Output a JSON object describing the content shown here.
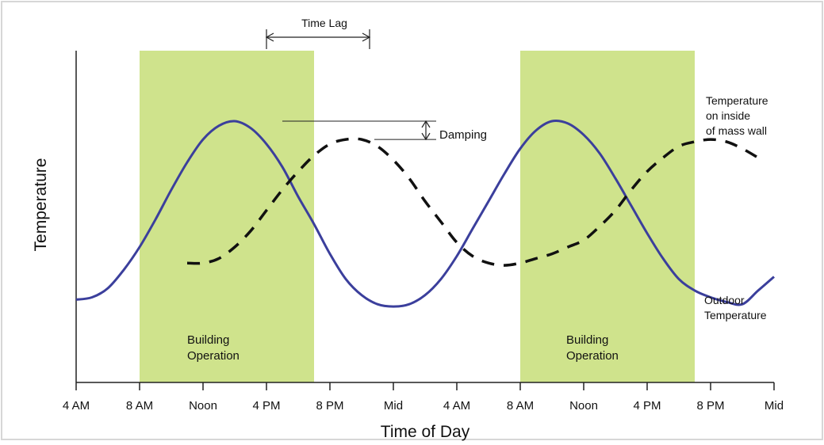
{
  "chart_data": {
    "type": "line",
    "title": "",
    "xlabel": "Time of Day",
    "ylabel": "Temperature",
    "x_ticks": [
      "4 AM",
      "8 AM",
      "Noon",
      "4 PM",
      "8 PM",
      "Mid",
      "4 AM",
      "8 AM",
      "Noon",
      "4 PM",
      "8 PM",
      "Mid"
    ],
    "x_unit": "hours after first 4 AM",
    "xlim": [
      0,
      44
    ],
    "ylim": [
      0,
      100
    ],
    "grid": false,
    "shaded_regions": [
      {
        "label": "Building Operation",
        "start": 4,
        "end": 15,
        "color": "#cfe38c"
      },
      {
        "label": "Building Operation",
        "start": 28,
        "end": 39,
        "color": "#cfe38c"
      }
    ],
    "series": [
      {
        "name": "Outdoor Temperature",
        "style": "solid",
        "color": "#3b3f9c",
        "x": [
          0,
          1,
          2,
          3,
          4,
          5,
          6,
          7,
          8,
          9,
          10,
          11,
          12,
          13,
          14,
          15,
          16,
          17,
          18,
          19,
          20,
          21,
          22,
          23,
          24,
          25,
          26,
          27,
          28,
          29,
          30,
          31,
          32,
          33,
          34,
          35,
          36,
          37,
          38,
          39,
          40,
          41,
          42,
          43,
          44
        ],
        "y": [
          4,
          5,
          9,
          17,
          27,
          39,
          52,
          64,
          74,
          80,
          82,
          79,
          72,
          62,
          49,
          37,
          24,
          13,
          6,
          2,
          1,
          2,
          6,
          13,
          23,
          35,
          47,
          59,
          70,
          78,
          82,
          81,
          76,
          68,
          57,
          45,
          33,
          22,
          13,
          8,
          5,
          3,
          2,
          8,
          14
        ]
      },
      {
        "name": "Temperature on inside of mass wall",
        "style": "dashed",
        "color": "#111111",
        "x": [
          7,
          8,
          9,
          10,
          11,
          12,
          13,
          14,
          15,
          16,
          17,
          18,
          19,
          20,
          21,
          22,
          23,
          24,
          25,
          26,
          27,
          28,
          29,
          30,
          31,
          32,
          33,
          34,
          35,
          36,
          37,
          38,
          39,
          40,
          41,
          42,
          43
        ],
        "y": [
          20,
          20,
          22,
          27,
          34,
          43,
          52,
          60,
          67,
          72,
          74,
          74,
          71,
          65,
          57,
          47,
          38,
          29,
          23,
          20,
          19,
          20,
          22,
          24,
          27,
          30,
          36,
          43,
          52,
          60,
          66,
          71,
          73,
          74,
          73,
          70,
          66
        ]
      }
    ],
    "annotations": [
      {
        "text": "Time Lag",
        "kind": "horizontal-arrow",
        "x_from": 12,
        "x_to": 18.5,
        "note": "shift between outdoor peak and inside-wall peak"
      },
      {
        "text": "Damping",
        "kind": "vertical-arrow",
        "y_from": 74,
        "y_to": 82,
        "note": "difference between the two peaks"
      }
    ],
    "labels": {
      "region1": [
        "Building",
        "Operation"
      ],
      "region2": [
        "Building",
        "Operation"
      ],
      "inside_label": [
        "Temperature",
        "on inside",
        "of mass wall"
      ],
      "outdoor_label": [
        "Outdoor",
        "Temperature"
      ]
    }
  }
}
